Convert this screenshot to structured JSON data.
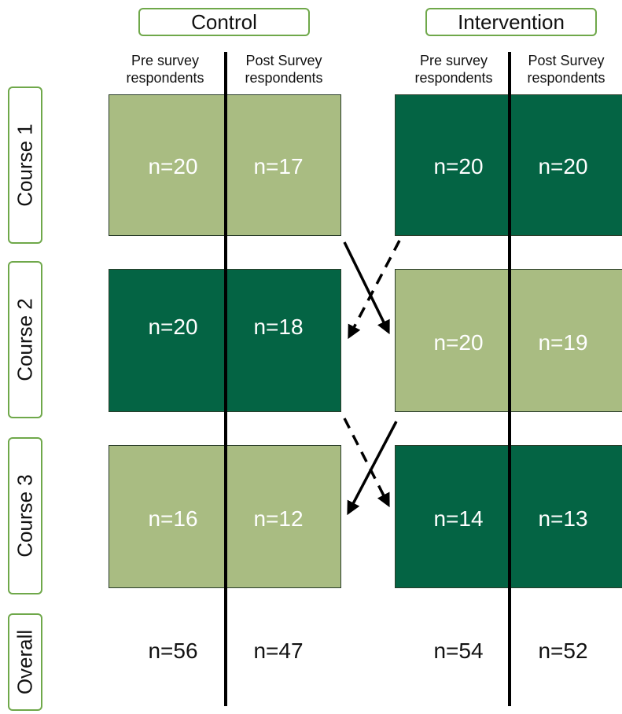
{
  "groups": {
    "control": "Control",
    "intervention": "Intervention"
  },
  "columns": {
    "pre": "Pre survey respondents",
    "post": "Post Survey respondents"
  },
  "rows": {
    "course1": "Course 1",
    "course2": "Course 2",
    "course3": "Course 3",
    "overall": "Overall"
  },
  "cells": {
    "course1": {
      "control_pre": "n=20",
      "control_post": "n=17",
      "intervention_pre": "n=20",
      "intervention_post": "n=20"
    },
    "course2": {
      "control_pre": "n=20",
      "control_post": "n=18",
      "intervention_pre": "n=20",
      "intervention_post": "n=19"
    },
    "course3": {
      "control_pre": "n=16",
      "control_post": "n=12",
      "intervention_pre": "n=14",
      "intervention_post": "n=13"
    },
    "overall": {
      "control_pre": "n=56",
      "control_post": "n=47",
      "intervention_pre": "n=54",
      "intervention_post": "n=52"
    }
  },
  "colors": {
    "light_green": "#a9bc82",
    "dark_green": "#046444",
    "outline_green": "#6fa84a"
  }
}
